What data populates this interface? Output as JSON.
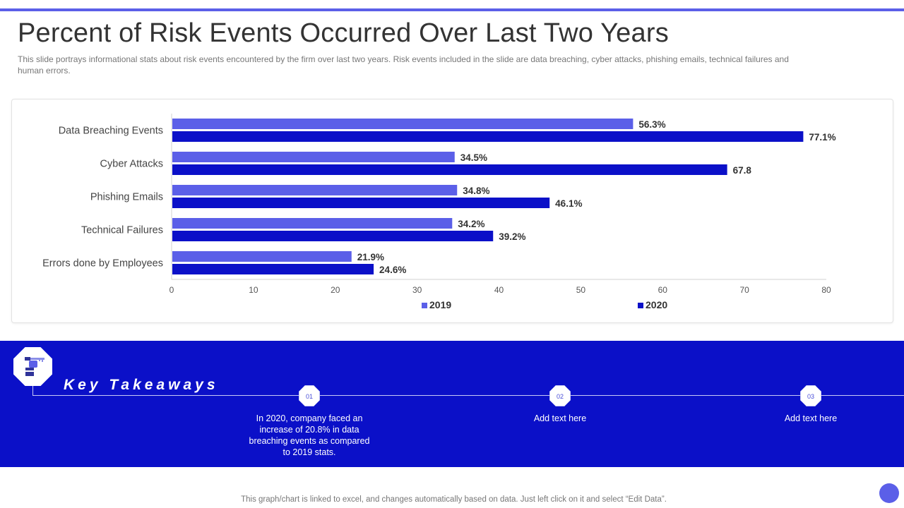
{
  "slide": {
    "title": "Percent of Risk Events Occurred Over Last Two Years",
    "subtitle": "This slide portrays informational stats about risk events encountered by the firm over last two years. Risk events included in the slide are data breaching, cyber attacks, phishing emails, technical failures and human errors.",
    "footer": "This graph/chart is linked to excel, and changes automatically based on data. Just left click on it and select “Edit Data”."
  },
  "colors": {
    "accent": "#5b5fe8",
    "series_2019": "#5b5fe8",
    "series_2020": "#0b10c8",
    "band": "#0b10c8"
  },
  "chart_data": {
    "type": "bar",
    "orientation": "horizontal",
    "categories": [
      "Data Breaching Events",
      "Cyber Attacks",
      "Phishing Emails",
      "Technical Failures",
      "Errors done by Employees"
    ],
    "series": [
      {
        "name": "2019",
        "values": [
          56.3,
          34.5,
          34.8,
          34.2,
          21.9
        ],
        "labels": [
          "56.3%",
          "34.5%",
          "34.8%",
          "34.2%",
          "21.9%"
        ]
      },
      {
        "name": "2020",
        "values": [
          77.1,
          67.8,
          46.1,
          39.2,
          24.6
        ],
        "labels": [
          "77.1%",
          "67.8",
          "46.1%",
          "39.2%",
          "24.6%"
        ]
      }
    ],
    "xlim": [
      0,
      80
    ],
    "xticks": [
      0,
      10,
      20,
      30,
      40,
      50,
      60,
      70,
      80
    ],
    "grid": false,
    "legend": "bottom"
  },
  "takeaways": {
    "title": "Key Takeaways",
    "icon": "hand-with-key-icon",
    "items": [
      {
        "number": "01",
        "text": "In 2020, company faced an increase of 20.8% in data breaching events as compared to 2019 stats."
      },
      {
        "number": "02",
        "text": "Add text here"
      },
      {
        "number": "03",
        "text": "Add text here"
      }
    ]
  }
}
